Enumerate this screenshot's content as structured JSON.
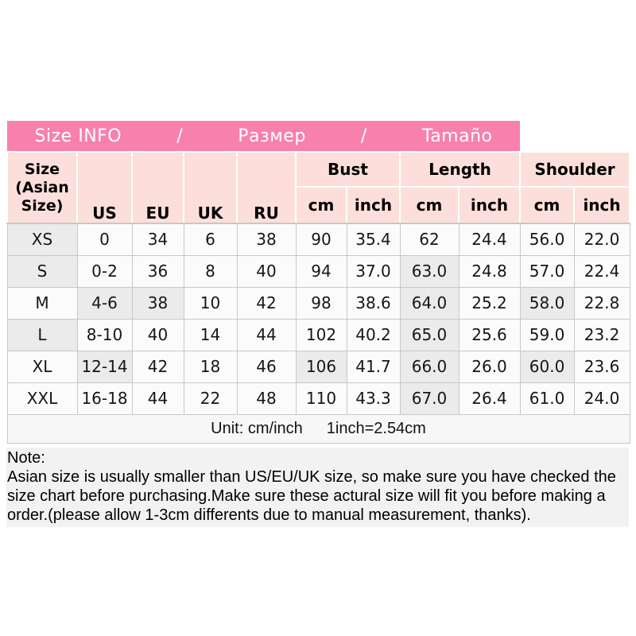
{
  "title_bar": {
    "items": [
      "Size INFO",
      "/",
      "Размер",
      "/",
      "Tamaño"
    ]
  },
  "table_header": {
    "corner_lines": [
      "Size",
      "(Asian",
      "Size)"
    ],
    "size_system_headers": [
      "US",
      "EU",
      "UK",
      "RU"
    ],
    "groups": [
      "Bust",
      "Length",
      "Shoulder"
    ],
    "unit_headers": [
      "cm",
      "inch",
      "cm",
      "inch",
      "cm",
      "inch"
    ]
  },
  "chart_data": {
    "type": "table",
    "title": "Size INFO / Размер / Tamaño",
    "columns": [
      "Size (Asian Size)",
      "US",
      "EU",
      "UK",
      "RU",
      "Bust cm",
      "Bust inch",
      "Length cm",
      "Length inch",
      "Shoulder cm",
      "Shoulder inch"
    ],
    "rows": [
      [
        "XS",
        "0",
        "34",
        "6",
        "38",
        "90",
        "35.4",
        "62",
        "24.4",
        "56.0",
        "22.0"
      ],
      [
        "S",
        "0-2",
        "36",
        "8",
        "40",
        "94",
        "37.0",
        "63.0",
        "24.8",
        "57.0",
        "22.4"
      ],
      [
        "M",
        "4-6",
        "38",
        "10",
        "42",
        "98",
        "38.6",
        "64.0",
        "25.2",
        "58.0",
        "22.8"
      ],
      [
        "L",
        "8-10",
        "40",
        "14",
        "44",
        "102",
        "40.2",
        "65.0",
        "25.6",
        "59.0",
        "23.2"
      ],
      [
        "XL",
        "12-14",
        "42",
        "18",
        "46",
        "106",
        "41.7",
        "66.0",
        "26.0",
        "60.0",
        "23.6"
      ],
      [
        "XXL",
        "16-18",
        "44",
        "22",
        "48",
        "110",
        "43.3",
        "67.0",
        "26.4",
        "61.0",
        "24.0"
      ]
    ],
    "unit_note": "Unit: cm/inch 1inch=2.54cm"
  },
  "footer": {
    "unit_label": "Unit: cm/inch",
    "conversion": "1inch=2.54cm"
  },
  "note": {
    "title": "Note:",
    "lines": [
      "Asian size is usually smaller than US/EU/UK size, so make sure you have checked the",
      "size chart before purchasing.Make sure these actural size will fit you before making a",
      "order.(please allow 1-3cm differents due to manual measurement, thanks)."
    ]
  },
  "colors": {
    "header_bar_pink": "#f781ac",
    "header_cell_pink": "#fcdfda",
    "grid_border": "#c8c8c8",
    "cell_bg": "#fbfbfb",
    "shaded_cell_bg": "#ebebeb",
    "footer_bg": "#f7f7f7",
    "note_bg": "#f2f2f2"
  }
}
